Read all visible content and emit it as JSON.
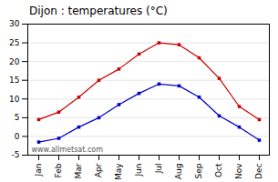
{
  "chart_data": {
    "type": "line",
    "title": "Dijon : temperatures (°C)",
    "categories": [
      "Jan",
      "Feb",
      "Mar",
      "Apr",
      "May",
      "Jun",
      "Jul",
      "Aug",
      "Sep",
      "Oct",
      "Nov",
      "Dec"
    ],
    "series": [
      {
        "color": "#cc0000",
        "marker": "square",
        "values": [
          4.5,
          6.5,
          10.5,
          15.0,
          18.0,
          22.0,
          25.0,
          24.5,
          21.0,
          15.5,
          8.0,
          4.5
        ]
      },
      {
        "color": "#0000cc",
        "marker": "square",
        "values": [
          -1.5,
          -0.5,
          2.5,
          5.0,
          8.5,
          11.5,
          14.0,
          13.5,
          10.5,
          5.5,
          2.5,
          -1.0
        ]
      }
    ],
    "ylim": [
      -5,
      30
    ],
    "yticks": [
      -5,
      0,
      5,
      10,
      15,
      20,
      25,
      30
    ],
    "grid": true,
    "annotations": [
      "www.allmetsat.com"
    ]
  }
}
